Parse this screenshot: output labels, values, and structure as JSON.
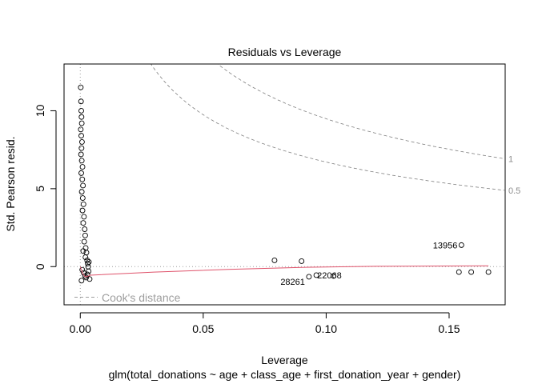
{
  "chart_data": {
    "type": "scatter",
    "title": "Residuals vs Leverage",
    "xlabel": "Leverage",
    "ylabel": "Std. Pearson resid.",
    "subtitle": "glm(total_donations ~ age + class_age + first_donation_year + gender)",
    "xlim": [
      -0.0066,
      0.1728
    ],
    "ylim": [
      -2.45,
      13.0
    ],
    "x_ticks": [
      {
        "value": 0.0,
        "label": "0.00"
      },
      {
        "value": 0.05,
        "label": "0.05"
      },
      {
        "value": 0.1,
        "label": "0.10"
      },
      {
        "value": 0.15,
        "label": "0.15"
      }
    ],
    "y_ticks": [
      {
        "value": 0,
        "label": "0"
      },
      {
        "value": 5,
        "label": "5"
      },
      {
        "value": 10,
        "label": "10"
      }
    ],
    "grid": false,
    "legend": {
      "placement": "bottom-left",
      "entries": [
        {
          "label": "Cook's distance",
          "style": "dashed",
          "color": "#9e9e9e"
        }
      ]
    },
    "reference_lines": [
      {
        "axis": "x",
        "value": 0,
        "style": "dotted",
        "color": "#9e9e9e"
      },
      {
        "axis": "y",
        "value": 0,
        "style": "dotted",
        "color": "#9e9e9e"
      }
    ],
    "cooks_distance_curves": [
      {
        "level": 0.5,
        "label": "0.5",
        "p": 10
      },
      {
        "level": 1,
        "label": "1",
        "p": 10
      }
    ],
    "smoother": {
      "color": "#df536b",
      "x": [
        0.0,
        0.001,
        0.002,
        0.003,
        0.004,
        0.03,
        0.06,
        0.09,
        0.12,
        0.166
      ],
      "y": [
        0.0,
        -0.45,
        -0.65,
        -0.62,
        -0.55,
        -0.35,
        -0.18,
        -0.05,
        0.02,
        0.05
      ]
    },
    "points": {
      "x": [
        0.079,
        0.09,
        0.093,
        0.096,
        0.103,
        0.155,
        0.154,
        0.159,
        0.166
      ],
      "y": [
        0.4,
        0.35,
        -0.65,
        -0.55,
        -0.6,
        1.38,
        -0.35,
        -0.35,
        -0.35
      ]
    },
    "cluster_points": {
      "x": [
        0.0002,
        0.0003,
        0.0004,
        0.0005,
        0.0006,
        0.0002,
        0.0004,
        0.0007,
        0.0005,
        0.0003,
        0.0006,
        0.0009,
        0.0004,
        0.0008,
        0.0011,
        0.0006,
        0.001,
        0.0013,
        0.0009,
        0.0015,
        0.0012,
        0.0018,
        0.002,
        0.0016,
        0.0022,
        0.0025,
        0.0021,
        0.0028,
        0.003,
        0.0032,
        0.0035,
        0.0008,
        0.0014,
        0.0019,
        0.0024,
        0.0029,
        0.0034,
        0.0038,
        0.0005,
        0.0012
      ],
      "y": [
        11.5,
        10.6,
        10.0,
        9.6,
        9.2,
        8.8,
        8.4,
        8.0,
        7.6,
        7.2,
        6.8,
        6.4,
        6.0,
        5.6,
        5.2,
        4.8,
        4.4,
        4.0,
        3.6,
        3.2,
        2.8,
        2.4,
        2.0,
        1.6,
        1.2,
        0.9,
        0.6,
        0.4,
        0.2,
        0.0,
        0.3,
        -0.2,
        -0.4,
        -0.6,
        -0.7,
        -0.5,
        -0.3,
        -0.8,
        -0.9,
        1.0
      ]
    },
    "point_labels": [
      {
        "label": "13956",
        "x": 0.155,
        "y": 1.38,
        "anchor": "left"
      },
      {
        "label": "28261",
        "x": 0.093,
        "y": -0.65,
        "anchor": "left"
      },
      {
        "label": "22068",
        "x": 0.096,
        "y": -0.55,
        "anchor": "right"
      }
    ]
  }
}
